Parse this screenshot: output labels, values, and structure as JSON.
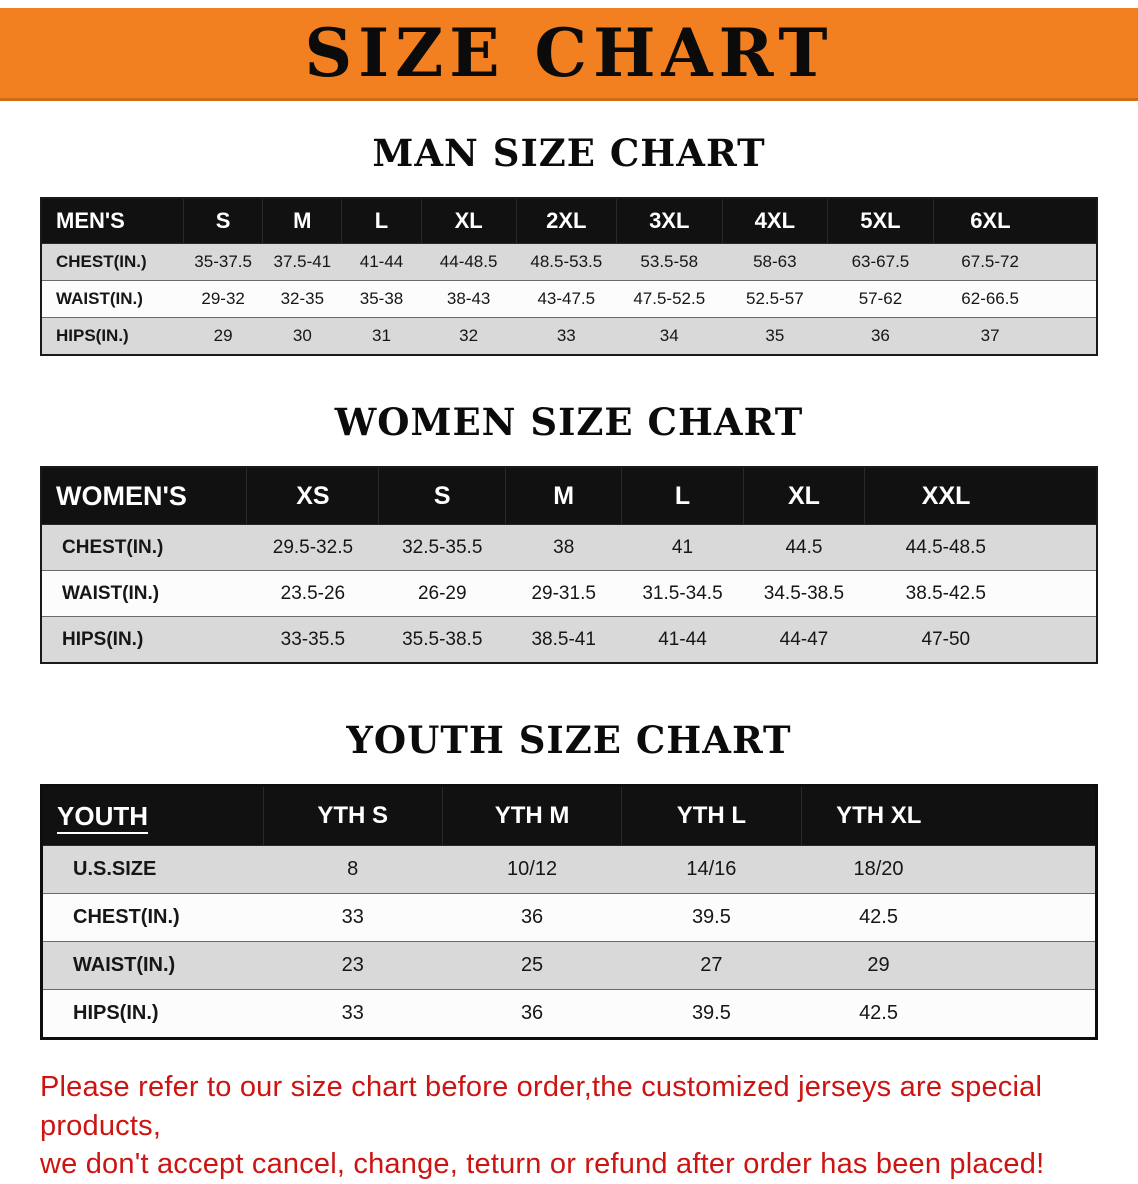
{
  "banner": {
    "title": "SIZE CHART"
  },
  "sections": [
    {
      "heading": "MAN SIZE CHART",
      "table": {
        "header": [
          "MEN'S",
          "S",
          "M",
          "L",
          "XL",
          "2XL",
          "3XL",
          "4XL",
          "5XL",
          "6XL"
        ],
        "rows": [
          [
            "CHEST(IN.)",
            "35-37.5",
            "37.5-41",
            "41-44",
            "44-48.5",
            "48.5-53.5",
            "53.5-58",
            "58-63",
            "63-67.5",
            "67.5-72"
          ],
          [
            "WAIST(IN.)",
            "29-32",
            "32-35",
            "35-38",
            "38-43",
            "43-47.5",
            "47.5-52.5",
            "52.5-57",
            "57-62",
            "62-66.5"
          ],
          [
            "HIPS(IN.)",
            "29",
            "30",
            "31",
            "32",
            "33",
            "34",
            "35",
            "36",
            "37"
          ]
        ]
      }
    },
    {
      "heading": "WOMEN SIZE CHART",
      "table": {
        "header": [
          "WOMEN'S",
          "XS",
          "S",
          "M",
          "L",
          "XL",
          "XXL"
        ],
        "rows": [
          [
            "CHEST(IN.)",
            "29.5-32.5",
            "32.5-35.5",
            "38",
            "41",
            "44.5",
            "44.5-48.5"
          ],
          [
            "WAIST(IN.)",
            "23.5-26",
            "26-29",
            "29-31.5",
            "31.5-34.5",
            "34.5-38.5",
            "38.5-42.5"
          ],
          [
            "HIPS(IN.)",
            "33-35.5",
            "35.5-38.5",
            "38.5-41",
            "41-44",
            "44-47",
            "47-50"
          ]
        ]
      }
    },
    {
      "heading": "YOUTH SIZE CHART",
      "table": {
        "header": [
          "YOUTH",
          "YTH S",
          "YTH M",
          "YTH L",
          "YTH XL"
        ],
        "rows": [
          [
            "U.S.SIZE",
            "8",
            "10/12",
            "14/16",
            "18/20"
          ],
          [
            "CHEST(IN.)",
            "33",
            "36",
            "39.5",
            "42.5"
          ],
          [
            "WAIST(IN.)",
            "23",
            "25",
            "27",
            "29"
          ],
          [
            "HIPS(IN.)",
            "33",
            "36",
            "39.5",
            "42.5"
          ]
        ]
      }
    }
  ],
  "footer": {
    "line1": "Please refer to our size chart before order,the customized jerseys are special products,",
    "line2": "we don't accept cancel, change, teturn or refund after order has been placed!"
  },
  "colors": {
    "banner_orange": "#f28021",
    "header_black": "#111111",
    "row_gray": "#d9d9d9",
    "footer_red": "#cc1412"
  }
}
